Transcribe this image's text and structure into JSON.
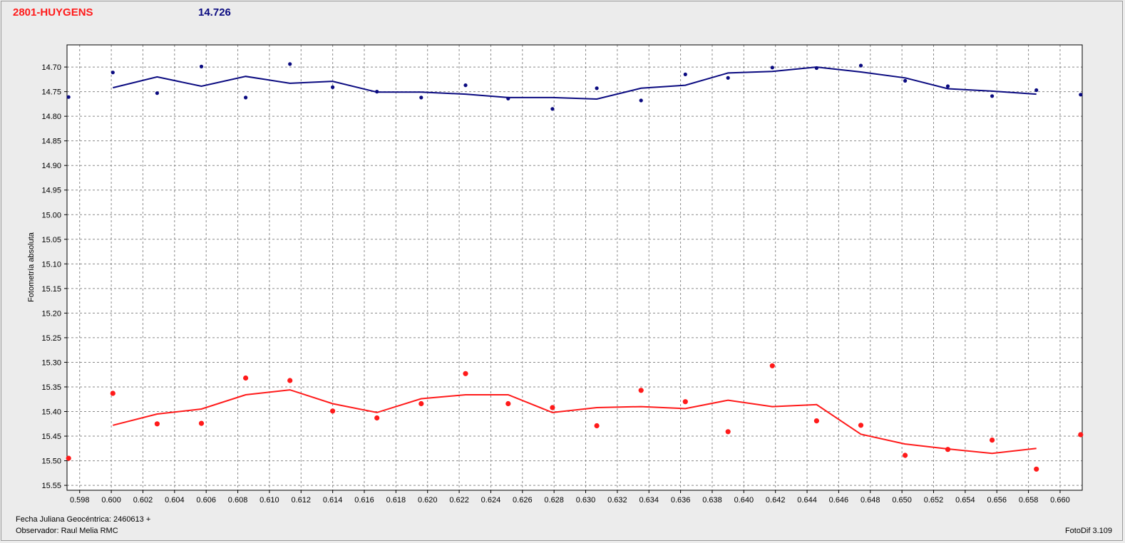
{
  "header": {
    "object_name": "2801-HUYGENS",
    "reference_magnitude": "14.726"
  },
  "footer": {
    "date_label": "Fecha Juliana Geocéntrica: 2460613 +",
    "observer_label": "Observador: Raul Melia RMC",
    "software_label": "FotoDif 3.109"
  },
  "chart_data": {
    "type": "scatter",
    "ylabel": "Fotometría absoluta",
    "xlabel": "",
    "xlim": [
      0.5972,
      0.6614
    ],
    "ylim": [
      15.56,
      14.655
    ],
    "y_inverted": true,
    "grid": true,
    "x_ticks": [
      "0.598",
      "0.600",
      "0.602",
      "0.604",
      "0.606",
      "0.608",
      "0.610",
      "0.612",
      "0.614",
      "0.616",
      "0.618",
      "0.620",
      "0.622",
      "0.624",
      "0.626",
      "0.628",
      "0.630",
      "0.632",
      "0.634",
      "0.636",
      "0.638",
      "0.640",
      "0.642",
      "0.644",
      "0.646",
      "0.648",
      "0.650",
      "0.652",
      "0.654",
      "0.656",
      "0.658",
      "0.660"
    ],
    "y_ticks": [
      "14.70",
      "14.75",
      "14.80",
      "14.85",
      "14.90",
      "14.95",
      "15.00",
      "15.05",
      "15.10",
      "15.15",
      "15.20",
      "15.25",
      "15.30",
      "15.35",
      "15.40",
      "15.45",
      "15.50",
      "15.55"
    ],
    "colors": {
      "series1": "#0a0a80",
      "series2": "#ff1a1a"
    },
    "series": [
      {
        "points": [
          [
            0.5973,
            14.761
          ],
          [
            0.6001,
            14.711
          ],
          [
            0.6029,
            14.753
          ],
          [
            0.6057,
            14.699
          ],
          [
            0.6085,
            14.762
          ],
          [
            0.6113,
            14.694
          ],
          [
            0.614,
            14.741
          ],
          [
            0.6168,
            14.75
          ],
          [
            0.6196,
            14.762
          ],
          [
            0.6224,
            14.737
          ],
          [
            0.6251,
            14.764
          ],
          [
            0.6279,
            14.785
          ],
          [
            0.6307,
            14.743
          ],
          [
            0.6335,
            14.768
          ],
          [
            0.6363,
            14.715
          ],
          [
            0.639,
            14.722
          ],
          [
            0.6418,
            14.701
          ],
          [
            0.6446,
            14.702
          ],
          [
            0.6474,
            14.697
          ],
          [
            0.6502,
            14.728
          ],
          [
            0.6529,
            14.739
          ],
          [
            0.6557,
            14.759
          ],
          [
            0.6585,
            14.747
          ],
          [
            0.6613,
            14.756
          ]
        ],
        "trend": [
          [
            0.6001,
            14.742
          ],
          [
            0.6029,
            14.72
          ],
          [
            0.6057,
            14.739
          ],
          [
            0.6085,
            14.719
          ],
          [
            0.6113,
            14.733
          ],
          [
            0.614,
            14.729
          ],
          [
            0.6168,
            14.751
          ],
          [
            0.6196,
            14.751
          ],
          [
            0.6224,
            14.755
          ],
          [
            0.6251,
            14.762
          ],
          [
            0.6279,
            14.762
          ],
          [
            0.6307,
            14.765
          ],
          [
            0.6335,
            14.743
          ],
          [
            0.6363,
            14.737
          ],
          [
            0.639,
            14.712
          ],
          [
            0.6418,
            14.709
          ],
          [
            0.6446,
            14.7
          ],
          [
            0.6474,
            14.71
          ],
          [
            0.6502,
            14.722
          ],
          [
            0.6529,
            14.744
          ],
          [
            0.6557,
            14.749
          ],
          [
            0.6585,
            14.755
          ]
        ]
      },
      {
        "points": [
          [
            0.5973,
            15.495
          ],
          [
            0.6001,
            15.363
          ],
          [
            0.6029,
            15.425
          ],
          [
            0.6057,
            15.424
          ],
          [
            0.6085,
            15.332
          ],
          [
            0.6113,
            15.337
          ],
          [
            0.614,
            15.399
          ],
          [
            0.6168,
            15.413
          ],
          [
            0.6196,
            15.384
          ],
          [
            0.6224,
            15.323
          ],
          [
            0.6251,
            15.384
          ],
          [
            0.6279,
            15.392
          ],
          [
            0.6307,
            15.429
          ],
          [
            0.6335,
            15.357
          ],
          [
            0.6363,
            15.38
          ],
          [
            0.639,
            15.441
          ],
          [
            0.6418,
            15.307
          ],
          [
            0.6446,
            15.419
          ],
          [
            0.6474,
            15.428
          ],
          [
            0.6502,
            15.489
          ],
          [
            0.6529,
            15.477
          ],
          [
            0.6557,
            15.458
          ],
          [
            0.6585,
            15.517
          ],
          [
            0.6613,
            15.447
          ]
        ],
        "trend": [
          [
            0.6001,
            15.428
          ],
          [
            0.6029,
            15.405
          ],
          [
            0.6057,
            15.395
          ],
          [
            0.6085,
            15.366
          ],
          [
            0.6113,
            15.356
          ],
          [
            0.614,
            15.384
          ],
          [
            0.6168,
            15.402
          ],
          [
            0.6196,
            15.374
          ],
          [
            0.6224,
            15.366
          ],
          [
            0.6251,
            15.366
          ],
          [
            0.6279,
            15.402
          ],
          [
            0.6307,
            15.392
          ],
          [
            0.6335,
            15.39
          ],
          [
            0.6363,
            15.394
          ],
          [
            0.639,
            15.377
          ],
          [
            0.6418,
            15.39
          ],
          [
            0.6446,
            15.386
          ],
          [
            0.6474,
            15.446
          ],
          [
            0.6502,
            15.466
          ],
          [
            0.6529,
            15.476
          ],
          [
            0.6557,
            15.485
          ],
          [
            0.6585,
            15.475
          ]
        ]
      }
    ]
  }
}
